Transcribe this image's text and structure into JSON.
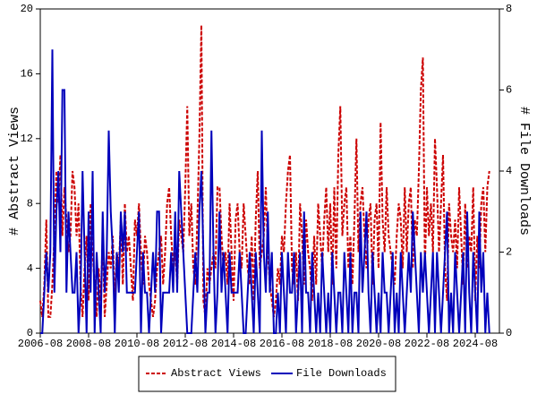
{
  "chart_data": {
    "type": "line",
    "x": [
      "2006-08",
      "2006-09",
      "2006-10",
      "2006-11",
      "2006-12",
      "2007-01",
      "2007-02",
      "2007-03",
      "2007-04",
      "2007-05",
      "2007-06",
      "2007-07",
      "2007-08",
      "2007-09",
      "2007-10",
      "2007-11",
      "2007-12",
      "2008-01",
      "2008-02",
      "2008-03",
      "2008-04",
      "2008-05",
      "2008-06",
      "2008-07",
      "2008-08",
      "2008-09",
      "2008-10",
      "2008-11",
      "2008-12",
      "2009-01",
      "2009-02",
      "2009-03",
      "2009-04",
      "2009-05",
      "2009-06",
      "2009-07",
      "2009-08",
      "2009-09",
      "2009-10",
      "2009-11",
      "2009-12",
      "2010-01",
      "2010-02",
      "2010-03",
      "2010-04",
      "2010-05",
      "2010-06",
      "2010-07",
      "2010-08",
      "2010-09",
      "2010-10",
      "2010-11",
      "2010-12",
      "2011-01",
      "2011-02",
      "2011-03",
      "2011-04",
      "2011-05",
      "2011-06",
      "2011-07",
      "2011-08",
      "2011-09",
      "2011-10",
      "2011-11",
      "2011-12",
      "2012-01",
      "2012-02",
      "2012-03",
      "2012-04",
      "2012-05",
      "2012-06",
      "2012-07",
      "2012-08",
      "2012-09",
      "2012-10",
      "2012-11",
      "2012-12",
      "2013-01",
      "2013-02",
      "2013-03",
      "2013-04",
      "2013-05",
      "2013-06",
      "2013-07",
      "2013-08",
      "2013-09",
      "2013-10",
      "2013-11",
      "2013-12",
      "2014-01",
      "2014-02",
      "2014-03",
      "2014-04",
      "2014-05",
      "2014-06",
      "2014-07",
      "2014-08",
      "2014-09",
      "2014-10",
      "2014-11",
      "2014-12",
      "2015-01",
      "2015-02",
      "2015-03",
      "2015-04",
      "2015-05",
      "2015-06",
      "2015-07",
      "2015-08",
      "2015-09",
      "2015-10",
      "2015-11",
      "2015-12",
      "2016-01",
      "2016-02",
      "2016-03",
      "2016-04",
      "2016-05",
      "2016-06",
      "2016-07",
      "2016-08",
      "2016-09",
      "2016-10",
      "2016-11",
      "2016-12",
      "2017-01",
      "2017-02",
      "2017-03",
      "2017-04",
      "2017-05",
      "2017-06",
      "2017-07",
      "2017-08",
      "2017-09",
      "2017-10",
      "2017-11",
      "2017-12",
      "2018-01",
      "2018-02",
      "2018-03",
      "2018-04",
      "2018-05",
      "2018-06",
      "2018-07",
      "2018-08",
      "2018-09",
      "2018-10",
      "2018-11",
      "2018-12",
      "2019-01",
      "2019-02",
      "2019-03",
      "2019-04",
      "2019-05",
      "2019-06",
      "2019-07",
      "2019-08",
      "2019-09",
      "2019-10",
      "2019-11",
      "2019-12",
      "2020-01",
      "2020-02",
      "2020-03",
      "2020-04",
      "2020-05",
      "2020-06",
      "2020-07",
      "2020-08",
      "2020-09",
      "2020-10",
      "2020-11",
      "2020-12",
      "2021-01",
      "2021-02",
      "2021-03",
      "2021-04",
      "2021-05",
      "2021-06",
      "2021-07",
      "2021-08",
      "2021-09",
      "2021-10",
      "2021-11",
      "2021-12",
      "2022-01",
      "2022-02",
      "2022-03",
      "2022-04",
      "2022-05",
      "2022-06",
      "2022-07",
      "2022-08",
      "2022-09",
      "2022-10",
      "2022-11",
      "2022-12",
      "2023-01",
      "2023-02",
      "2023-03",
      "2023-04",
      "2023-05",
      "2023-06",
      "2023-07",
      "2023-08",
      "2023-09",
      "2023-10",
      "2023-11",
      "2023-12",
      "2024-01",
      "2024-02",
      "2024-03",
      "2024-04",
      "2024-05",
      "2024-06",
      "2024-07",
      "2024-08",
      "2024-09",
      "2024-10",
      "2024-11",
      "2024-12",
      "2025-01",
      "2025-02",
      "2025-03"
    ],
    "series": [
      {
        "name": "Abstract Views",
        "color": "#cc0000",
        "line_style": "dashed",
        "axis": "y",
        "values": [
          2,
          1,
          3,
          7,
          1,
          1,
          3,
          6,
          10,
          8,
          11,
          6,
          9,
          7,
          5,
          6,
          10,
          9,
          6,
          8,
          3,
          1,
          4,
          6,
          2,
          8,
          5,
          3,
          1,
          4,
          2,
          6,
          1,
          3,
          5,
          4,
          6,
          2,
          5,
          4,
          7,
          3,
          8,
          5,
          6,
          4,
          2,
          7,
          6,
          8,
          5,
          3,
          6,
          5,
          3,
          2,
          1,
          2,
          4,
          5,
          6,
          3,
          5,
          8,
          9,
          6,
          4,
          5,
          3,
          7,
          6,
          5,
          9,
          14,
          6,
          8,
          4,
          3,
          7,
          12,
          19,
          2,
          1,
          4,
          3,
          4,
          5,
          4,
          9,
          9,
          6,
          4,
          5,
          3,
          8,
          5,
          2,
          7,
          8,
          5,
          4,
          8,
          6,
          4,
          3,
          6,
          2,
          7,
          10,
          4,
          5,
          6,
          9,
          5,
          3,
          2,
          1,
          2,
          4,
          3,
          6,
          5,
          8,
          10,
          11,
          4,
          3,
          5,
          2,
          8,
          6,
          3,
          7,
          5,
          4,
          2,
          6,
          3,
          8,
          6,
          4,
          7,
          9,
          5,
          8,
          3,
          9,
          4,
          11,
          14,
          6,
          8,
          9,
          4,
          6,
          3,
          7,
          12,
          5,
          8,
          9,
          6,
          4,
          7,
          8,
          3,
          7,
          8,
          4,
          13,
          7,
          5,
          9,
          6,
          5,
          4,
          3,
          6,
          8,
          7,
          4,
          9,
          5,
          8,
          9,
          4,
          7,
          6,
          10,
          15,
          17,
          4,
          9,
          6,
          8,
          5,
          12,
          9,
          5,
          8,
          11,
          4,
          2,
          8,
          6,
          5,
          7,
          4,
          9,
          6,
          3,
          8,
          4,
          6,
          5,
          9,
          2,
          6,
          4,
          8,
          9,
          5,
          9,
          10
        ]
      },
      {
        "name": "File Downloads",
        "color": "#0000bb",
        "line_style": "solid",
        "axis": "y2",
        "values": [
          0,
          0,
          1,
          2,
          1,
          2,
          7,
          1,
          3,
          4,
          2,
          6,
          6,
          1,
          3,
          2,
          1,
          1,
          2,
          0,
          1,
          4,
          2,
          0,
          3,
          1,
          4,
          0,
          2,
          1,
          0,
          3,
          1,
          2,
          5,
          3,
          2,
          0,
          2,
          1,
          3,
          2,
          3,
          1,
          1,
          1,
          1,
          1,
          2,
          3,
          0,
          2,
          1,
          1,
          0,
          1,
          2,
          1,
          3,
          3,
          0,
          1,
          1,
          1,
          1,
          2,
          1,
          3,
          1,
          4,
          3,
          2,
          1,
          0,
          0,
          0,
          1,
          2,
          1,
          3,
          4,
          2,
          0,
          1,
          1,
          5,
          2,
          0,
          1,
          3,
          1,
          2,
          1,
          0,
          2,
          1,
          1,
          1,
          1,
          2,
          1,
          0,
          0,
          1,
          2,
          1,
          0,
          2,
          1,
          0,
          5,
          2,
          1,
          3,
          1,
          2,
          0,
          0,
          1,
          0,
          2,
          1,
          0,
          2,
          1,
          1,
          2,
          0,
          1,
          2,
          0,
          3,
          1,
          1,
          0,
          2,
          1,
          0,
          1,
          0,
          2,
          1,
          0,
          1,
          0,
          2,
          1,
          0,
          1,
          1,
          0,
          2,
          1,
          0,
          2,
          0,
          1,
          1,
          0,
          3,
          1,
          2,
          3,
          1,
          0,
          2,
          1,
          0,
          1,
          0,
          2,
          1,
          1,
          0,
          1,
          2,
          0,
          1,
          0,
          2,
          1,
          0,
          1,
          2,
          1,
          3,
          2,
          1,
          0,
          2,
          1,
          2,
          1,
          0,
          1,
          2,
          0,
          2,
          1,
          0,
          1,
          2,
          3,
          0,
          1,
          0,
          2,
          1,
          0,
          1,
          2,
          0,
          3,
          1,
          0,
          2,
          1,
          0,
          3,
          1,
          2,
          0,
          1,
          0
        ]
      }
    ],
    "ylabel": "# Abstract Views",
    "y2label": "# File Downloads",
    "xlim": [
      "2006-08",
      "2025-08"
    ],
    "xticks": [
      "2006-08",
      "2008-08",
      "2010-08",
      "2012-08",
      "2014-08",
      "2016-08",
      "2018-08",
      "2020-08",
      "2022-08",
      "2024-08"
    ],
    "ylim": [
      0,
      20
    ],
    "yticks": [
      0,
      4,
      8,
      12,
      16,
      20
    ],
    "y2lim": [
      0,
      8
    ],
    "y2ticks": [
      0,
      2,
      4,
      6,
      8
    ],
    "legend": "bottom"
  }
}
